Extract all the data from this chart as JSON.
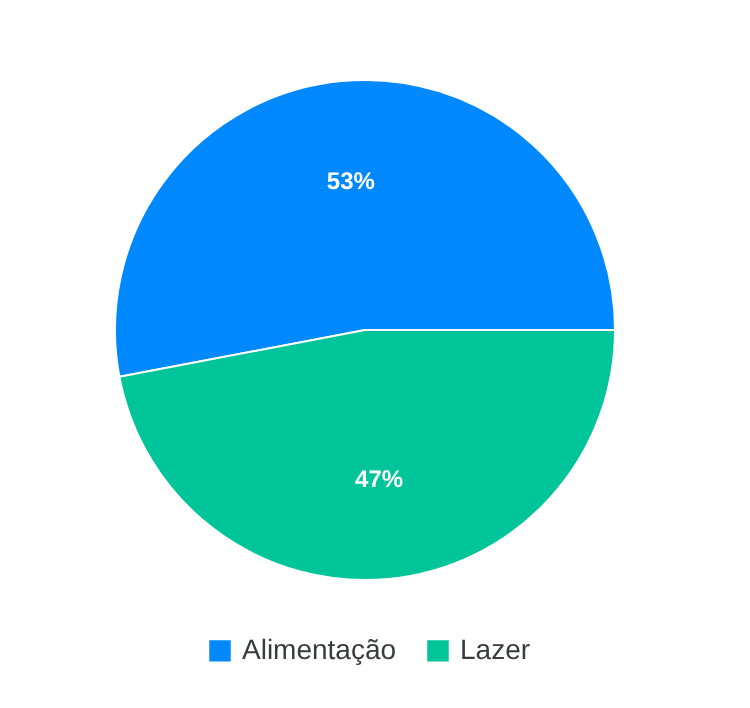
{
  "chart_data": {
    "type": "pie",
    "categories": [
      "Alimentação",
      "Lazer"
    ],
    "values": [
      53,
      47
    ],
    "colors": [
      "#0088ff",
      "#00c49a"
    ],
    "value_labels": [
      "53%",
      "47%"
    ],
    "legend": "bottom"
  }
}
